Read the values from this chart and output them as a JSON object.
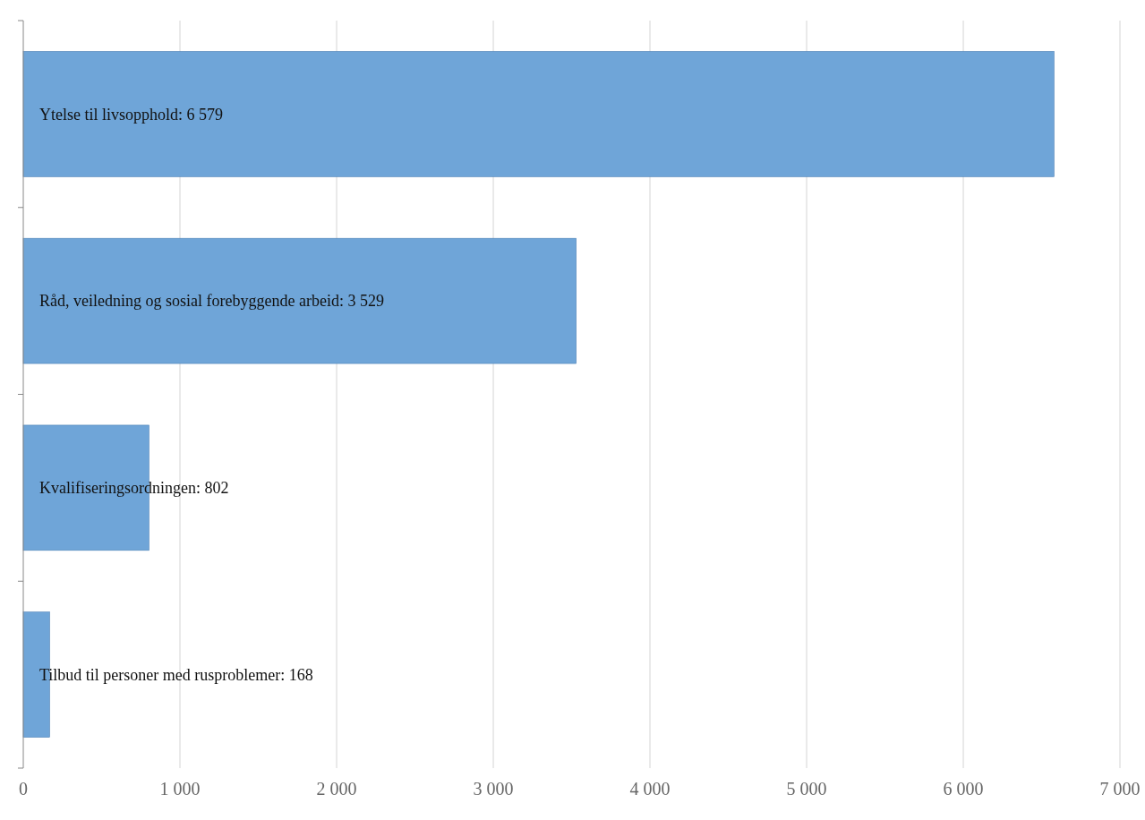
{
  "chart_data": {
    "type": "bar",
    "orientation": "horizontal",
    "categories": [
      "Ytelse til livsopphold: 6 579",
      "Råd, veiledning og sosial forebyggende arbeid: 3 529",
      "Kvalifiseringsordningen: 802",
      "Tilbud til personer med rusproblemer: 168"
    ],
    "values": [
      6579,
      3529,
      802,
      168
    ],
    "color": "#6fa5d8",
    "xlim": [
      0,
      7000
    ],
    "xticks": [
      0,
      {
        "value": 1000,
        "label": "1 000"
      },
      {
        "value": 2000,
        "label": "2 000"
      },
      {
        "value": 3000,
        "label": "3 000"
      },
      {
        "value": 4000,
        "label": "4 000"
      },
      {
        "value": 5000,
        "label": "5 000"
      },
      {
        "value": 6000,
        "label": "6 000"
      },
      {
        "value": 7000,
        "label": "7 000"
      }
    ],
    "grid": "x"
  }
}
